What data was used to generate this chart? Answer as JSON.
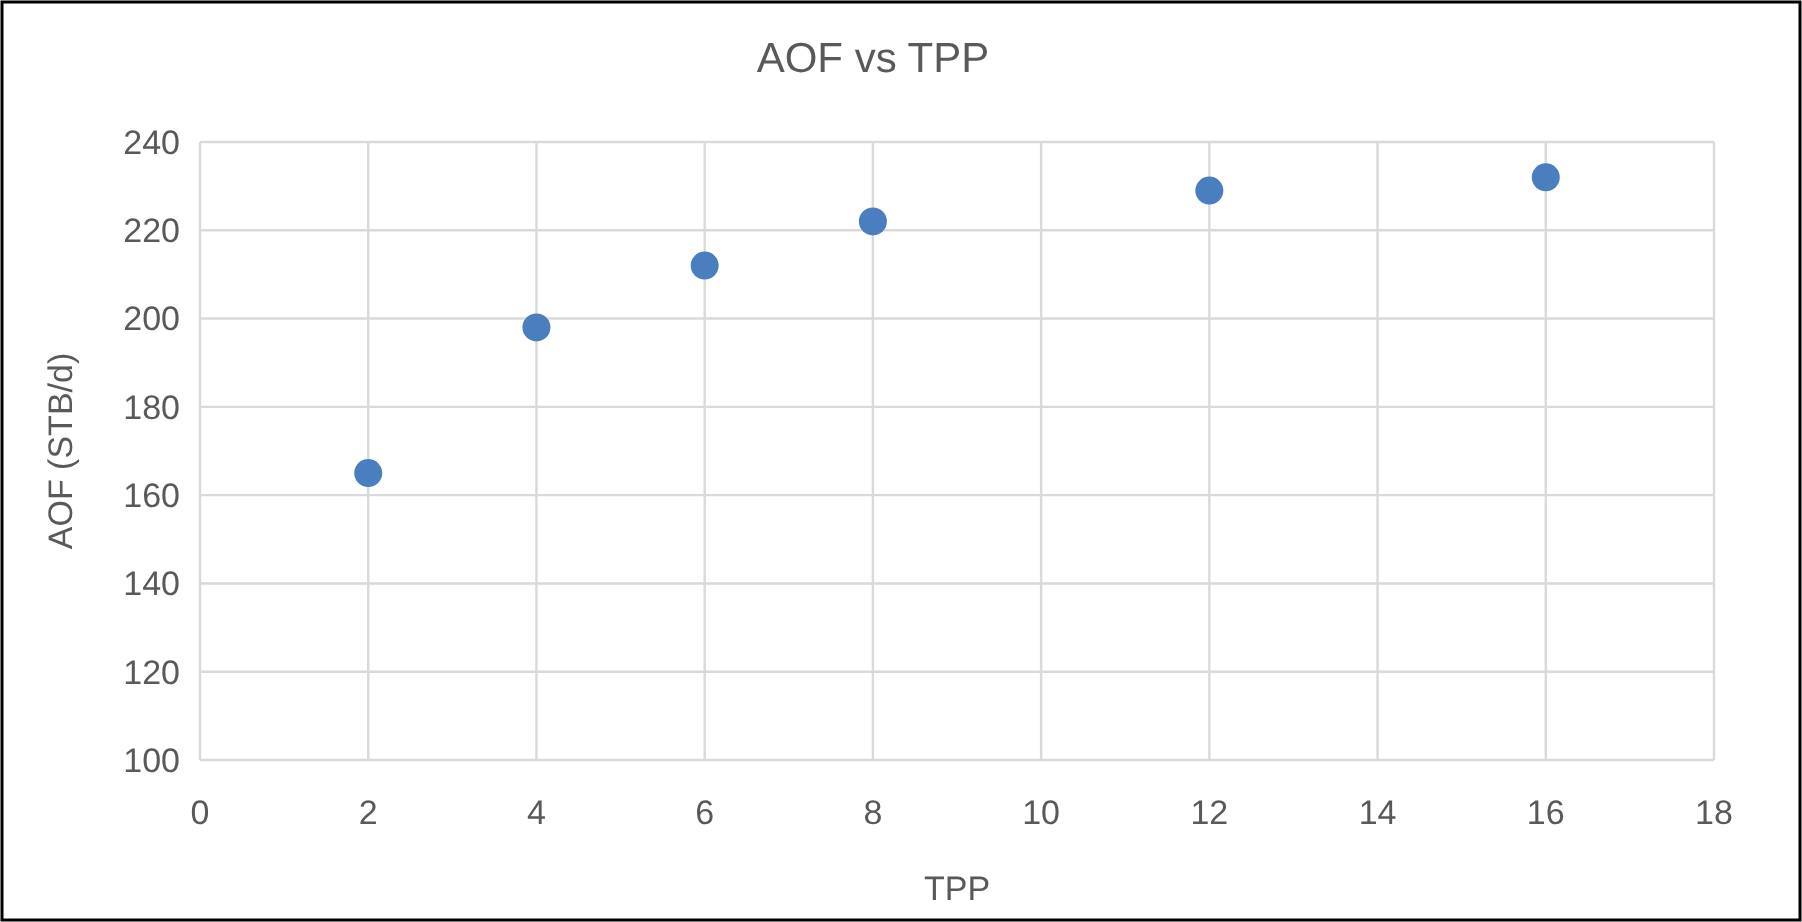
{
  "chart_data": {
    "type": "scatter",
    "title": "AOF vs TPP",
    "xlabel": "TPP",
    "ylabel": "AOF (STB/d)",
    "x": [
      2,
      4,
      6,
      8,
      12,
      16
    ],
    "series": [
      {
        "color": "#4a7ebf",
        "values": [
          165,
          198,
          212,
          222,
          229,
          232
        ]
      }
    ],
    "xlim": [
      0,
      18
    ],
    "xticks": [
      0,
      2,
      4,
      6,
      8,
      10,
      12,
      14,
      16,
      18
    ],
    "ylim": [
      100,
      240
    ],
    "yticks": [
      100,
      120,
      140,
      160,
      180,
      200,
      220,
      240
    ],
    "grid": true,
    "marker": "circle"
  }
}
